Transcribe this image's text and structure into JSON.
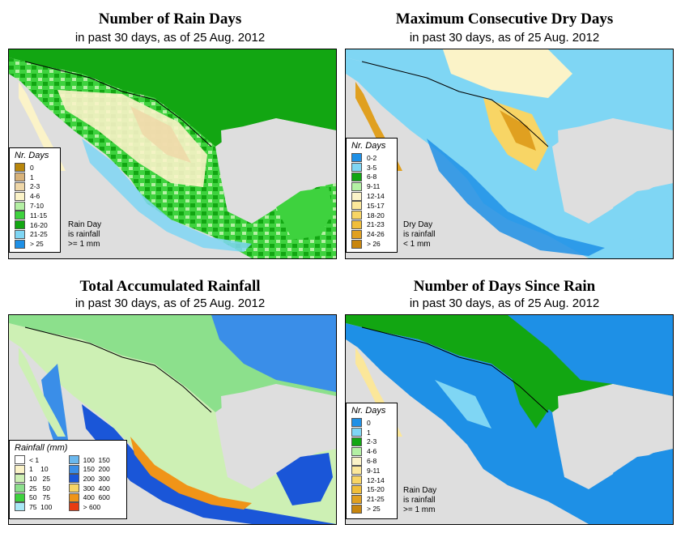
{
  "panels": {
    "p1": {
      "title": "Number of Rain Days",
      "subtitle": "in past 30 days, as of  25 Aug. 2012",
      "legend_title": "Nr. Days",
      "legend": [
        {
          "label": "0",
          "color": "#b8860b"
        },
        {
          "label": "1",
          "color": "#d8b27a"
        },
        {
          "label": "2-3",
          "color": "#efd7a8"
        },
        {
          "label": "4-6",
          "color": "#fbf3c8"
        },
        {
          "label": "7-10",
          "color": "#b4f0a4"
        },
        {
          "label": "11-15",
          "color": "#3ed23e"
        },
        {
          "label": "16-20",
          "color": "#12a612"
        },
        {
          "label": "21-25",
          "color": "#7fd6f4"
        },
        {
          "label": "> 25",
          "color": "#1e90e6"
        }
      ],
      "note": [
        "Rain Day",
        "is rainfall",
        ">= 1 mm"
      ]
    },
    "p2": {
      "title": "Maximum Consecutive Dry Days",
      "subtitle": "in past 30 days, as of  25 Aug. 2012",
      "legend_title": "Nr. Days",
      "legend": [
        {
          "label": "0-2",
          "color": "#1e90e6"
        },
        {
          "label": "3-5",
          "color": "#7fd6f4"
        },
        {
          "label": "6-8",
          "color": "#12a612"
        },
        {
          "label": "9-11",
          "color": "#b4f0a4"
        },
        {
          "label": "12-14",
          "color": "#fbf3c8"
        },
        {
          "label": "15-17",
          "color": "#fbe79a"
        },
        {
          "label": "18-20",
          "color": "#f8d565"
        },
        {
          "label": "21-23",
          "color": "#f0be3a"
        },
        {
          "label": "24-26",
          "color": "#e0a020"
        },
        {
          "label": "> 26",
          "color": "#c8860e"
        }
      ],
      "note": [
        "Dry Day",
        "is rainfall",
        "< 1 mm"
      ]
    },
    "p3": {
      "title": "Total Accumulated Rainfall",
      "subtitle": "in past 30 days, as of  25 Aug. 2012",
      "legend_title": "Rainfall (mm)",
      "legend_left": [
        {
          "label": "< 1",
          "color": "#ffffff"
        },
        {
          "label": "1    10",
          "color": "#fbf3c8"
        },
        {
          "label": "10   25",
          "color": "#cdf0b4"
        },
        {
          "label": "25   50",
          "color": "#8ce08c"
        },
        {
          "label": "50   75",
          "color": "#3ed23e"
        },
        {
          "label": "75  100",
          "color": "#a8e8f6"
        }
      ],
      "legend_right": [
        {
          "label": "100  150",
          "color": "#6ab8ee"
        },
        {
          "label": "150  200",
          "color": "#3a8ee8"
        },
        {
          "label": "200  300",
          "color": "#1a56d8"
        },
        {
          "label": "300  400",
          "color": "#f8d565"
        },
        {
          "label": "400  600",
          "color": "#f09418"
        },
        {
          "label": "> 600",
          "color": "#e83c10"
        }
      ]
    },
    "p4": {
      "title": "Number of Days Since Rain",
      "subtitle": "in past 30 days, as of  25 Aug. 2012",
      "legend_title": "Nr. Days",
      "legend": [
        {
          "label": "0",
          "color": "#1e90e6"
        },
        {
          "label": "1",
          "color": "#7fd6f4"
        },
        {
          "label": "2-3",
          "color": "#12a612"
        },
        {
          "label": "4-6",
          "color": "#b4f0a4"
        },
        {
          "label": "6-8",
          "color": "#fbf3c8"
        },
        {
          "label": "9-11",
          "color": "#fbe79a"
        },
        {
          "label": "12-14",
          "color": "#f8d565"
        },
        {
          "label": "15-20",
          "color": "#f0be3a"
        },
        {
          "label": "21-25",
          "color": "#e0a020"
        },
        {
          "label": "> 25",
          "color": "#c8860e"
        }
      ],
      "note": [
        "Rain Day",
        "is rainfall",
        ">= 1 mm"
      ]
    }
  }
}
